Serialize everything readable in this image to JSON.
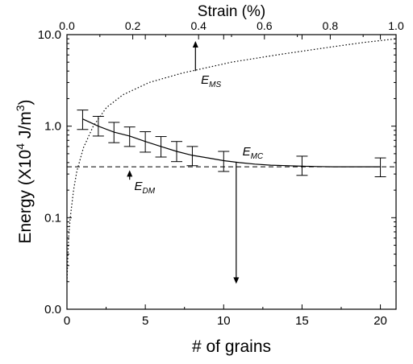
{
  "chart_data": {
    "type": "line",
    "xlabel": "# of grains",
    "x2label": "Strain (%)",
    "ylabel_parts": [
      "Energy (X10",
      "4",
      " J/m",
      "3",
      ")"
    ],
    "xlim": [
      0,
      21
    ],
    "x2lim": [
      0,
      1.0
    ],
    "ylim_log": [
      0.01,
      10
    ],
    "x_ticks": [
      "0",
      "5",
      "10",
      "15",
      "20"
    ],
    "x2_ticks": [
      "0.0",
      "0.2",
      "0.4",
      "0.6",
      "0.8",
      "1.0"
    ],
    "y_ticks": [
      {
        "value": 0.01,
        "label": "0.0"
      },
      {
        "value": 0.1,
        "label": "0.1"
      },
      {
        "value": 1,
        "label": "1.0"
      },
      {
        "value": 10,
        "label": "10.0"
      }
    ],
    "grid": false,
    "series": [
      {
        "name": "E_MC",
        "style": "solid",
        "x": [
          1,
          2,
          3,
          4,
          5,
          6,
          7,
          8,
          10,
          15,
          20
        ],
        "y": [
          1.2,
          1.0,
          0.86,
          0.78,
          0.68,
          0.6,
          0.53,
          0.48,
          0.42,
          0.37,
          0.36
        ],
        "err_low": [
          0.92,
          0.78,
          0.66,
          0.6,
          0.52,
          0.46,
          0.41,
          0.37,
          0.32,
          0.29,
          0.28
        ],
        "err_high": [
          1.5,
          1.28,
          1.1,
          0.98,
          0.87,
          0.77,
          0.68,
          0.6,
          0.53,
          0.47,
          0.45
        ],
        "curve_x": [
          1,
          2,
          3,
          4,
          5,
          6,
          7,
          8,
          9,
          10,
          11,
          12,
          13,
          14,
          15,
          16,
          17,
          18,
          19,
          20
        ],
        "curve_y": [
          1.2,
          1.0,
          0.86,
          0.78,
          0.68,
          0.6,
          0.53,
          0.48,
          0.45,
          0.42,
          0.4,
          0.385,
          0.375,
          0.37,
          0.365,
          0.362,
          0.36,
          0.36,
          0.36,
          0.36
        ]
      },
      {
        "name": "E_MS",
        "style": "dotted",
        "axis": "top",
        "strain": [
          0.0,
          0.005,
          0.01,
          0.02,
          0.03,
          0.05,
          0.08,
          0.12,
          0.17,
          0.25,
          0.35,
          0.5,
          0.65,
          0.8,
          0.9,
          1.0
        ],
        "y": [
          0.02,
          0.06,
          0.1,
          0.2,
          0.32,
          0.58,
          1.0,
          1.6,
          2.2,
          3.0,
          3.8,
          5.0,
          6.1,
          7.3,
          8.2,
          9.0
        ]
      },
      {
        "name": "E_DM",
        "style": "dashed",
        "x": [
          0,
          21
        ],
        "y": [
          0.36,
          0.36
        ]
      }
    ],
    "annotations": [
      {
        "base": "E",
        "sub": "MS",
        "x": 8.55,
        "y": 2.9
      },
      {
        "base": "E",
        "sub": "MC",
        "x": 11.2,
        "y": 0.48
      },
      {
        "base": "E",
        "sub": "DM",
        "x": 4.3,
        "y": 0.2
      }
    ],
    "arrows": [
      {
        "dir": "up",
        "x": 8.2,
        "y_from": 4.0,
        "y_to": 8.5
      },
      {
        "dir": "down",
        "x": 10.8,
        "y_from": 0.4,
        "y_to": 0.019
      },
      {
        "dir": "up",
        "x": 4.0,
        "y_from": 0.26,
        "y_to": 0.33
      }
    ]
  }
}
